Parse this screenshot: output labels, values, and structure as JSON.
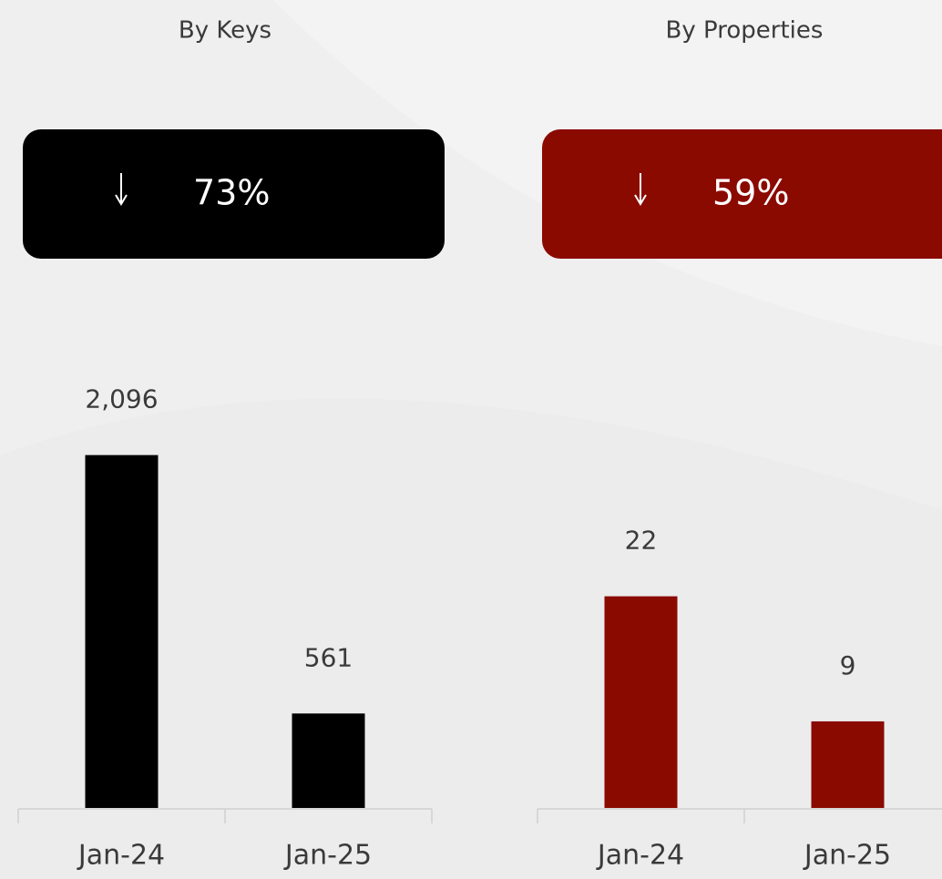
{
  "chart_data": [
    {
      "type": "bar",
      "title": "By Keys",
      "annotation": "73%",
      "badge_color": "#000000",
      "categories": [
        "Jan-24",
        "Jan-25"
      ],
      "values": [
        2096,
        561
      ],
      "value_labels": [
        "2,096",
        "561"
      ],
      "color": "#000000",
      "ylim": [
        0,
        2743
      ]
    },
    {
      "type": "bar",
      "title": "By Properties",
      "annotation": "59%",
      "badge_color": "#8b0a00",
      "categories": [
        "Jan-24",
        "Jan-25"
      ],
      "values": [
        22,
        9
      ],
      "color": "#8b0a00",
      "ylim": [
        0,
        48
      ]
    }
  ]
}
